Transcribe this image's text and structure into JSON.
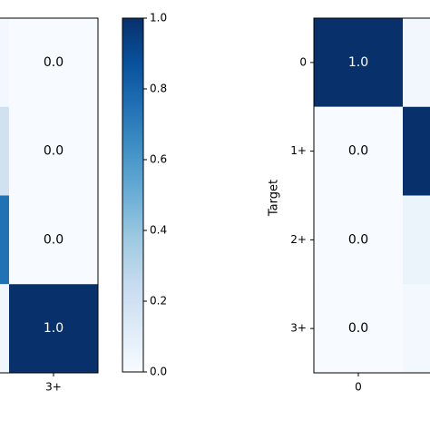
{
  "chart_data": [
    {
      "type": "heatmap",
      "x_categories": [
        null,
        "3+"
      ],
      "values": [
        [
          0.02,
          0.0
        ],
        [
          0.2,
          0.0
        ],
        [
          0.75,
          0.0
        ],
        [
          0.04,
          1.0
        ]
      ],
      "value_labels": [
        [
          null,
          "0.0"
        ],
        [
          null,
          "0.0"
        ],
        [
          null,
          "0.0"
        ],
        [
          null,
          "1.0"
        ]
      ],
      "clim": [
        0,
        1
      ],
      "cticks": [
        {
          "value": 0,
          "label": "0.0"
        },
        {
          "value": 0.2,
          "label": "0.2"
        },
        {
          "value": 0.4,
          "label": "0.4"
        },
        {
          "value": 0.6,
          "label": "0.6"
        },
        {
          "value": 0.8,
          "label": "0.8"
        },
        {
          "value": 1,
          "label": "1.0"
        }
      ],
      "colormap": [
        "#f7fbff",
        "#deebf7",
        "#c6dbef",
        "#9ecae1",
        "#6baed6",
        "#4292c6",
        "#2171b5",
        "#08519c",
        "#08306b"
      ]
    },
    {
      "type": "heatmap",
      "ylabel": "Target",
      "x_categories": [
        "0",
        null
      ],
      "y_categories": [
        "0",
        "1+",
        "2+",
        "3+"
      ],
      "values": [
        [
          1.0,
          0.03
        ],
        [
          0.0,
          1.0
        ],
        [
          0.0,
          0.06
        ],
        [
          0.0,
          0.02
        ]
      ],
      "value_labels": [
        [
          "1.0",
          null
        ],
        [
          "0.0",
          null
        ],
        [
          "0.0",
          null
        ],
        [
          "0.0",
          null
        ]
      ],
      "clim": [
        0,
        1
      ],
      "colormap": [
        "#f7fbff",
        "#deebf7",
        "#c6dbef",
        "#9ecae1",
        "#6baed6",
        "#4292c6",
        "#2171b5",
        "#08519c",
        "#08306b"
      ]
    }
  ]
}
